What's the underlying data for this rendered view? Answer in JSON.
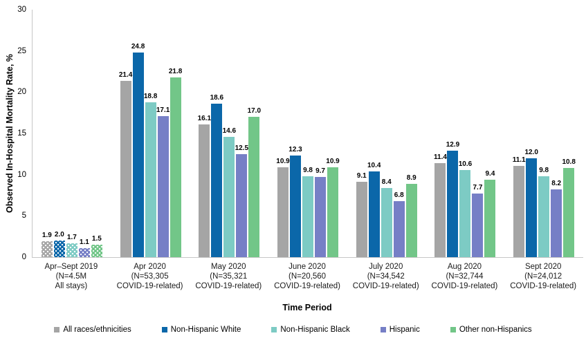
{
  "chart_data": {
    "type": "bar",
    "title": "",
    "xlabel": "Time Period",
    "ylabel": "Observed In-Hospital Mortality Rate, %",
    "ylim": [
      0,
      30
    ],
    "yticks": [
      0,
      5,
      10,
      15,
      20,
      25,
      30
    ],
    "grid": false,
    "legend_position": "bottom",
    "axis_color": "#C6C6C6",
    "value_label_format": "one_decimal",
    "categories": [
      {
        "label_lines": [
          "Apr–Sept 2019",
          "(N=4.5M",
          "All stays)"
        ],
        "patterned": true
      },
      {
        "label_lines": [
          "Apr 2020",
          "(N=53,305",
          "COVID-19-related)"
        ],
        "patterned": false
      },
      {
        "label_lines": [
          "May 2020",
          "(N=35,321",
          "COVID-19-related)"
        ],
        "patterned": false
      },
      {
        "label_lines": [
          "June 2020",
          "(N=20,560",
          "COVID-19-related)"
        ],
        "patterned": false
      },
      {
        "label_lines": [
          "July 2020",
          "(N=34,542",
          "COVID-19-related)"
        ],
        "patterned": false
      },
      {
        "label_lines": [
          "Aug 2020",
          "(N=32,744",
          "COVID-19-related)"
        ],
        "patterned": false
      },
      {
        "label_lines": [
          "Sept 2020",
          "(N=24,012",
          "COVID-19-related)"
        ],
        "patterned": false
      }
    ],
    "series": [
      {
        "name": "All races/ethnicities",
        "color": "#A5A5A5",
        "values": [
          1.9,
          21.4,
          16.1,
          10.9,
          9.1,
          11.4,
          11.1
        ]
      },
      {
        "name": "Non-Hispanic White",
        "color": "#0B67A9",
        "values": [
          2.0,
          24.8,
          18.6,
          12.3,
          10.4,
          12.9,
          12.0
        ]
      },
      {
        "name": "Non-Hispanic Black",
        "color": "#7DCBC4",
        "values": [
          1.7,
          18.8,
          14.6,
          9.8,
          8.4,
          10.6,
          9.8
        ]
      },
      {
        "name": "Hispanic",
        "color": "#767FC6",
        "values": [
          1.1,
          17.1,
          12.5,
          9.7,
          6.8,
          7.7,
          8.2
        ]
      },
      {
        "name": "Other non-Hispanics",
        "color": "#72C688",
        "values": [
          1.5,
          21.8,
          17.0,
          10.9,
          8.9,
          9.4,
          10.8
        ]
      }
    ]
  }
}
